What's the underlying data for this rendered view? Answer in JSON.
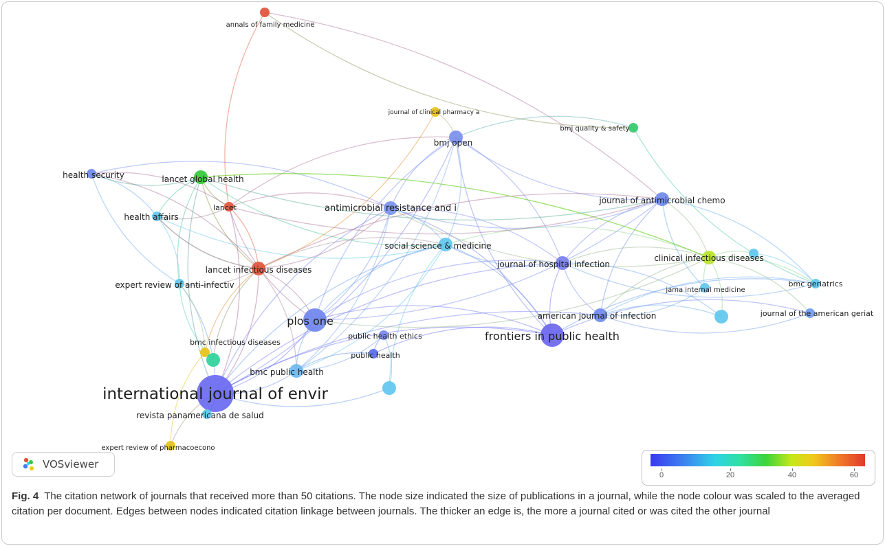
{
  "figure": {
    "caption_label": "Fig. 4",
    "caption_text": "The citation network of journals that received more than 50 citations. The node size indicated the size of publications in a journal, while the node colour was scaled to the averaged citation per document. Edges between nodes indicated citation linkage between journals. The thicker an edge is, the more a journal cited or was cited the other journal"
  },
  "logo": {
    "text": "VOSviewer",
    "icon": "vosviewer-logo-icon"
  },
  "legend": {
    "labels": [
      "0",
      "20",
      "40",
      "60"
    ],
    "colors": [
      "#3a3af0",
      "#3d7ff0",
      "#2fd3e8",
      "#3ed43a",
      "#c8e81a",
      "#f0c81a",
      "#f07a2a",
      "#e03a2a"
    ]
  },
  "nodes": [
    {
      "id": "ije",
      "label": "international journal of envir",
      "color": "#6a6af2",
      "citation": 12,
      "size": 5
    },
    {
      "id": "plos",
      "label": "plos one",
      "color": "#6f86ee",
      "citation": 14,
      "size": 3
    },
    {
      "id": "fph",
      "label": "frontiers in public health",
      "color": "#6b66ee",
      "citation": 10,
      "size": 3
    },
    {
      "id": "bmjopen",
      "label": "bmj open",
      "color": "#7b8fee",
      "citation": 15,
      "size": 2
    },
    {
      "id": "ant",
      "label": "antimicrobial resistance and i",
      "color": "#7a93ee",
      "citation": 15,
      "size": 2
    },
    {
      "id": "jac",
      "label": "journal of antimicrobial chemo",
      "color": "#6f8aee",
      "citation": 14,
      "size": 2
    },
    {
      "id": "ssm",
      "label": "social science & medicine",
      "color": "#5fc7ee",
      "citation": 22,
      "size": 2
    },
    {
      "id": "jhi",
      "label": "journal of hospital infection",
      "color": "#7a7fee",
      "citation": 12,
      "size": 2
    },
    {
      "id": "cid",
      "label": "clinical infectious diseases",
      "color": "#b8e32a",
      "citation": 40,
      "size": 2
    },
    {
      "id": "ajic",
      "label": "american journal of infection",
      "color": "#6f8aee",
      "citation": 14,
      "size": 2
    },
    {
      "id": "lid",
      "label": "lancet infectious diseases",
      "color": "#e0553a",
      "citation": 62,
      "size": 2
    },
    {
      "id": "lgh",
      "label": "lancet global health",
      "color": "#35c83a",
      "citation": 34,
      "size": 2
    },
    {
      "id": "lancet",
      "label": "lancet",
      "color": "#e0553a",
      "citation": 62,
      "size": 1
    },
    {
      "id": "hs",
      "label": "health security",
      "color": "#6f8aee",
      "citation": 14,
      "size": 1
    },
    {
      "id": "ha",
      "label": "health affairs",
      "color": "#5fc7ee",
      "citation": 22,
      "size": 1
    },
    {
      "id": "erai",
      "label": "expert review of anti-infectiv",
      "color": "#5fc7ee",
      "citation": 22,
      "size": 1
    },
    {
      "id": "bmcid",
      "label": "bmc infectious diseases",
      "color": "#e6c21a",
      "citation": 45,
      "size": 1
    },
    {
      "id": "bmcph",
      "label": "bmc public health",
      "color": "#6fb7ee",
      "citation": 18,
      "size": 2
    },
    {
      "id": "phe",
      "label": "public health ethics",
      "color": "#7a8aee",
      "citation": 14,
      "size": 1
    },
    {
      "id": "ph",
      "label": "public health",
      "color": "#5a6aee",
      "citation": 12,
      "size": 1
    },
    {
      "id": "rps",
      "label": "revista panamericana de salud",
      "color": "#5fc7ee",
      "citation": 22,
      "size": 1
    },
    {
      "id": "erp",
      "label": "expert review of pharmacoecono",
      "color": "#e6c21a",
      "citation": 45,
      "size": 1
    },
    {
      "id": "afm",
      "label": "annals of family medicine",
      "color": "#e0553a",
      "citation": 62,
      "size": 1
    },
    {
      "id": "jcp",
      "label": "journal of clinical pharmacy a",
      "color": "#e6c21a",
      "citation": 45,
      "size": 1
    },
    {
      "id": "bmjqs",
      "label": "bmj quality & safety",
      "color": "#35c86a",
      "citation": 30,
      "size": 1
    },
    {
      "id": "bmcg",
      "label": "bmc geriatrics",
      "color": "#5fc7ee",
      "citation": 22,
      "size": 1
    },
    {
      "id": "jim",
      "label": "jama internal medicine",
      "color": "#5fc7ee",
      "citation": 22,
      "size": 1
    },
    {
      "id": "jags",
      "label": "journal of the american geriat",
      "color": "#6f9aee",
      "citation": 16,
      "size": 1
    },
    {
      "id": "u1",
      "label": "",
      "color": "#5fc7ee",
      "citation": 22,
      "size": 2
    },
    {
      "id": "u2",
      "label": "",
      "color": "#5fc7ee",
      "citation": 22,
      "size": 2
    },
    {
      "id": "u3",
      "label": "",
      "color": "#2fd39a",
      "citation": 30,
      "size": 2
    },
    {
      "id": "u4",
      "label": "",
      "color": "#5fc7ee",
      "citation": 22,
      "size": 1
    }
  ],
  "edges": [
    [
      "ije",
      "plos"
    ],
    [
      "ije",
      "fph"
    ],
    [
      "ije",
      "bmjopen"
    ],
    [
      "ije",
      "ant"
    ],
    [
      "ije",
      "lid"
    ],
    [
      "ije",
      "ssm"
    ],
    [
      "ije",
      "bmcph"
    ],
    [
      "ije",
      "jhi"
    ],
    [
      "ije",
      "erp"
    ],
    [
      "ije",
      "rps"
    ],
    [
      "ije",
      "erai"
    ],
    [
      "ije",
      "lgh"
    ],
    [
      "ije",
      "lancet"
    ],
    [
      "ije",
      "ajic"
    ],
    [
      "ije",
      "u1"
    ],
    [
      "plos",
      "bmjopen"
    ],
    [
      "plos",
      "ant"
    ],
    [
      "plos",
      "fph"
    ],
    [
      "plos",
      "lid"
    ],
    [
      "plos",
      "lancet"
    ],
    [
      "plos",
      "jac"
    ],
    [
      "plos",
      "ssm"
    ],
    [
      "plos",
      "bmcph"
    ],
    [
      "plos",
      "jhi"
    ],
    [
      "plos",
      "cid"
    ],
    [
      "fph",
      "bmjopen"
    ],
    [
      "fph",
      "ssm"
    ],
    [
      "fph",
      "jhi"
    ],
    [
      "fph",
      "ph"
    ],
    [
      "fph",
      "jags"
    ],
    [
      "fph",
      "ant"
    ],
    [
      "fph",
      "bmcg"
    ],
    [
      "bmjopen",
      "jac"
    ],
    [
      "bmjopen",
      "ssm"
    ],
    [
      "bmjopen",
      "lancet"
    ],
    [
      "bmjopen",
      "bmjqs"
    ],
    [
      "bmjopen",
      "jcp"
    ],
    [
      "bmjopen",
      "jhi"
    ],
    [
      "bmjopen",
      "ant"
    ],
    [
      "bmjopen",
      "bmcph"
    ],
    [
      "ant",
      "jac"
    ],
    [
      "ant",
      "lid"
    ],
    [
      "ant",
      "lancet"
    ],
    [
      "ant",
      "ssm"
    ],
    [
      "ant",
      "hs"
    ],
    [
      "ant",
      "jhi"
    ],
    [
      "ant",
      "cid"
    ],
    [
      "ant",
      "bmcph"
    ],
    [
      "jac",
      "jhi"
    ],
    [
      "jac",
      "cid"
    ],
    [
      "jac",
      "ajic"
    ],
    [
      "jac",
      "bmcg"
    ],
    [
      "jac",
      "jim"
    ],
    [
      "jac",
      "lgh"
    ],
    [
      "jac",
      "lid"
    ],
    [
      "ssm",
      "lgh"
    ],
    [
      "ssm",
      "lid"
    ],
    [
      "ssm",
      "cid"
    ],
    [
      "ssm",
      "jhi"
    ],
    [
      "ssm",
      "bmcph"
    ],
    [
      "ssm",
      "u1"
    ],
    [
      "ssm",
      "ha"
    ],
    [
      "jhi",
      "ajic"
    ],
    [
      "jhi",
      "cid"
    ],
    [
      "jhi",
      "bmcg"
    ],
    [
      "jhi",
      "u2"
    ],
    [
      "cid",
      "jim"
    ],
    [
      "cid",
      "bmcg"
    ],
    [
      "cid",
      "ajic"
    ],
    [
      "cid",
      "u2"
    ],
    [
      "cid",
      "lgh"
    ],
    [
      "cid",
      "jags"
    ],
    [
      "ajic",
      "jim"
    ],
    [
      "ajic",
      "u2"
    ],
    [
      "ajic",
      "jags"
    ],
    [
      "ajic",
      "bmcg"
    ],
    [
      "lid",
      "lancet"
    ],
    [
      "lid",
      "lgh"
    ],
    [
      "lid",
      "bmcid"
    ],
    [
      "lid",
      "erai"
    ],
    [
      "lid",
      "hs"
    ],
    [
      "lid",
      "ha"
    ],
    [
      "lid",
      "u3"
    ],
    [
      "lid",
      "bmcph"
    ],
    [
      "lgh",
      "lancet"
    ],
    [
      "lgh",
      "hs"
    ],
    [
      "lgh",
      "ha"
    ],
    [
      "lgh",
      "cid"
    ],
    [
      "lgh",
      "erai"
    ],
    [
      "lancet",
      "afm"
    ],
    [
      "lancet",
      "hs"
    ],
    [
      "lancet",
      "ha"
    ],
    [
      "lancet",
      "jac"
    ],
    [
      "hs",
      "ha"
    ],
    [
      "hs",
      "erai"
    ],
    [
      "ha",
      "erai"
    ],
    [
      "ha",
      "lid"
    ],
    [
      "erai",
      "bmcid"
    ],
    [
      "erai",
      "u3"
    ],
    [
      "bmcid",
      "u3"
    ],
    [
      "bmcph",
      "phe"
    ],
    [
      "bmcph",
      "ph"
    ],
    [
      "phe",
      "ph"
    ],
    [
      "phe",
      "u1"
    ],
    [
      "rps",
      "ije"
    ],
    [
      "erp",
      "bmcid"
    ],
    [
      "afm",
      "bmjqs"
    ],
    [
      "afm",
      "jac"
    ],
    [
      "bmjqs",
      "bmcg"
    ],
    [
      "jcp",
      "lid"
    ],
    [
      "u4",
      "cid"
    ],
    [
      "u4",
      "bmcg"
    ]
  ]
}
